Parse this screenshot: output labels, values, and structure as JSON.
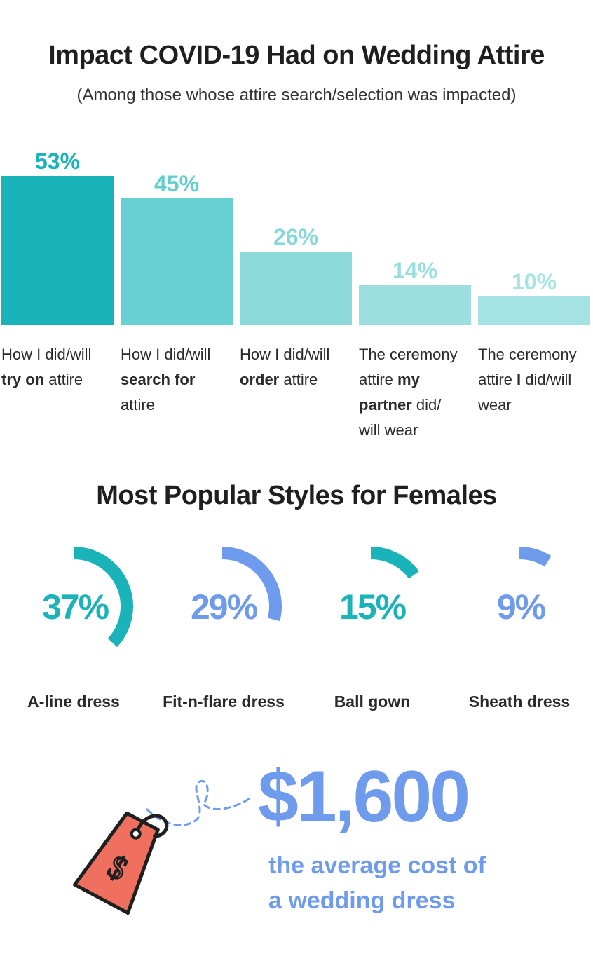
{
  "title": "Impact COVID-19 Had on Wedding Attire",
  "subtitle": "(Among those whose attire search/selection was impacted)",
  "chart_data": [
    {
      "type": "bar",
      "title": "Impact COVID-19 Had on Wedding Attire",
      "subtitle": "(Among those whose attire search/selection was impacted)",
      "categories": [
        "How I did/will try on attire",
        "How I did/will search for attire",
        "How I did/will order attire",
        "The ceremony attire my partner did/ will wear",
        "The ceremony attire I did/will wear"
      ],
      "values": [
        53,
        45,
        26,
        14,
        10
      ],
      "value_labels": [
        "53%",
        "45%",
        "26%",
        "14%",
        "10%"
      ],
      "colors": [
        "#19b3b9",
        "#67d0d0",
        "#8cd9dc",
        "#9ddfe0",
        "#a4e2e3"
      ],
      "label_colors": [
        "#19b3b9",
        "#62cfcf",
        "#86d8da",
        "#9adddf",
        "#a8e3e4"
      ],
      "ylim": [
        0,
        53
      ],
      "grid": false
    },
    {
      "type": "pie",
      "title": "Most Popular Styles for Females",
      "categories": [
        "A-line dress",
        "Fit-n-flare dress",
        "Ball gown",
        "Sheath dress"
      ],
      "values": [
        37,
        29,
        15,
        9
      ],
      "value_labels": [
        "37%",
        "29%",
        "15%",
        "9%"
      ],
      "colors": [
        "#19b3b9",
        "#6f9bec",
        "#19b3b9",
        "#6f9bec"
      ]
    }
  ],
  "section2_title": "Most Popular Styles for Females",
  "category_labels": [
    {
      "pre": "How I did/will ",
      "bold": "try on",
      "post": " attire"
    },
    {
      "pre": "How I did/will ",
      "bold": "search for",
      "post": " attire"
    },
    {
      "pre": "How I did/will ",
      "bold": "order",
      "post": " attire"
    },
    {
      "pre": "The ceremony attire ",
      "bold": "my partner",
      "post": " did/ will wear"
    },
    {
      "pre": "The ceremony attire ",
      "bold": "I",
      "post": " did/will wear"
    }
  ],
  "price": "$1,600",
  "price_caption_line1": "the average cost of",
  "price_caption_line2": "a wedding dress",
  "tag_symbol": "$",
  "colors": {
    "teal": "#19b3b9",
    "blue": "#6f9bec",
    "tag": "#f07060"
  }
}
